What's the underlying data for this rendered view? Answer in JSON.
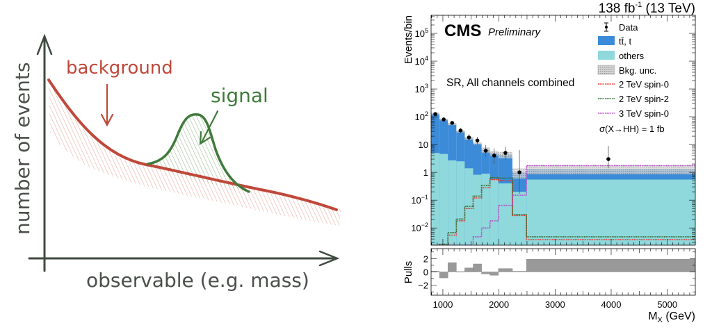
{
  "sketch": {
    "ylabel": "number of events",
    "xlabel": "observable (e.g. mass)",
    "background_label": "background",
    "signal_label": "signal",
    "colors": {
      "axis": "#3f4a3f",
      "background": "#c0483a",
      "signal": "#3f7a3a",
      "text": "#4a4f4a"
    }
  },
  "chart_data": [
    {
      "type": "sketch",
      "title": "",
      "xlabel": "observable (e.g. mass)",
      "ylabel": "number of events",
      "series": [
        {
          "name": "background",
          "shape": "falling exponential"
        },
        {
          "name": "signal",
          "shape": "gaussian peak on top of background"
        }
      ]
    },
    {
      "type": "bar",
      "subtype": "stacked histogram (log scale) with ratio/pulls panel",
      "header_left": "CMS",
      "header_left_italic": "Preliminary",
      "lumi_label": "138 fb",
      "lumi_sup": "-1",
      "lumi_suffix": " (13 TeV)",
      "annotation": "SR, All channels combined",
      "xsec_label": "σ(X→HH) = 1 fb",
      "xlabel": "M",
      "xlabel_sub": "X",
      "xlabel_suffix": " (GeV)",
      "ylabel": "Events/bin",
      "pulls_ylabel": "Pulls",
      "xlim": [
        790,
        5500
      ],
      "ylim_log10": [
        -2.62,
        5.65
      ],
      "yticks": [
        {
          "v": 100000,
          "label": "10",
          "sup": "5"
        },
        {
          "v": 10000,
          "label": "10",
          "sup": "4"
        },
        {
          "v": 1000,
          "label": "10",
          "sup": "3"
        },
        {
          "v": 100,
          "label": "10",
          "sup": "2"
        },
        {
          "v": 10,
          "label": "10",
          "sup": ""
        },
        {
          "v": 1,
          "label": "1",
          "sup": ""
        },
        {
          "v": 0.1,
          "label": "10",
          "sup": "−1"
        },
        {
          "v": 0.01,
          "label": "10",
          "sup": "−2"
        }
      ],
      "xticks": [
        1000,
        2000,
        3000,
        4000,
        5000
      ],
      "pulls_ylim": [
        -3.5,
        3.5
      ],
      "pulls_yticks": [
        {
          "v": 2,
          "label": "2"
        },
        {
          "v": 0,
          "label": "0"
        },
        {
          "v": -2,
          "label": "−2"
        }
      ],
      "bin_edges": [
        790,
        940,
        1090,
        1240,
        1390,
        1540,
        1690,
        1840,
        1990,
        2240,
        2490,
        5500
      ],
      "legend": [
        {
          "name": "Data",
          "kind": "marker"
        },
        {
          "name": "tt̄, t",
          "kind": "fill",
          "color": "#3b8bd9"
        },
        {
          "name": "others",
          "kind": "fill",
          "color": "#8fd8dc"
        },
        {
          "name": "Bkg. unc.",
          "kind": "hatch",
          "color": "#b8b8b8"
        },
        {
          "name": "2 TeV spin-0",
          "kind": "line",
          "color": "#e8352a"
        },
        {
          "name": "2 TeV spin-2",
          "kind": "line",
          "color": "#2f6b2f"
        },
        {
          "name": "3 TeV spin-0",
          "kind": "line",
          "color": "#b848c8"
        }
      ],
      "series": [
        {
          "name": "others",
          "values": [
            5.0,
            4.6,
            2.7,
            2.5,
            1.4,
            0.82,
            0.9,
            0.55,
            0.4,
            0.2,
            0.55
          ]
        },
        {
          "name": "tt̄, t (stack total)",
          "values": [
            130,
            80,
            55,
            30,
            17,
            11,
            6.5,
            5.0,
            4.3,
            1.0,
            1.3
          ]
        },
        {
          "name": "Bkg. unc. (upper)",
          "values": [
            140,
            86,
            60,
            33,
            19,
            12,
            8,
            6,
            5.5,
            1.4,
            1.8
          ]
        },
        {
          "name": "Bkg. unc. (lower)",
          "values": [
            120,
            74,
            50,
            27,
            15,
            10,
            5,
            4,
            3.2,
            0.6,
            0.85
          ]
        },
        {
          "name": "2 TeV spin-0",
          "values": [
            0.0024,
            0.0024,
            0.0055,
            0.018,
            0.05,
            0.12,
            0.28,
            0.55,
            0.5,
            0.028,
            0.0038
          ]
        },
        {
          "name": "2 TeV spin-2",
          "values": [
            0.0024,
            0.0026,
            0.0068,
            0.021,
            0.06,
            0.14,
            0.34,
            0.65,
            0.62,
            0.03,
            0.0048
          ]
        },
        {
          "name": "3 TeV spin-0",
          "values": [
            0.0024,
            0.0024,
            0.0024,
            0.0024,
            0.0024,
            0.0048,
            0.01,
            0.018,
            0.065,
            0.15,
            1.75
          ]
        }
      ],
      "data_points": [
        {
          "x": 865,
          "y": 125,
          "err_lo": 12,
          "err_hi": 12
        },
        {
          "x": 1015,
          "y": 80,
          "err_lo": 9,
          "err_hi": 9
        },
        {
          "x": 1165,
          "y": 60,
          "err_lo": 8,
          "err_hi": 8
        },
        {
          "x": 1315,
          "y": 32,
          "err_lo": 6,
          "err_hi": 7
        },
        {
          "x": 1465,
          "y": 18,
          "err_lo": 4.5,
          "err_hi": 5.5
        },
        {
          "x": 1615,
          "y": 14,
          "err_lo": 4,
          "err_hi": 5
        },
        {
          "x": 1765,
          "y": 6,
          "err_lo": 2.4,
          "err_hi": 3.5
        },
        {
          "x": 1915,
          "y": 4,
          "err_lo": 2,
          "err_hi": 3.2
        },
        {
          "x": 2115,
          "y": 5,
          "err_lo": 2.2,
          "err_hi": 3.4
        },
        {
          "x": 2365,
          "y": 1,
          "err_lo": 0.83,
          "err_hi": 5.3
        },
        {
          "x": 3950,
          "y": 3,
          "err_lo": 1.6,
          "err_hi": 6
        }
      ],
      "pulls": [
        0.1,
        -0.9,
        1.4,
        0.05,
        0.6,
        1.2,
        -0.3,
        -0.5,
        0.5,
        0.1,
        1.9
      ]
    }
  ]
}
